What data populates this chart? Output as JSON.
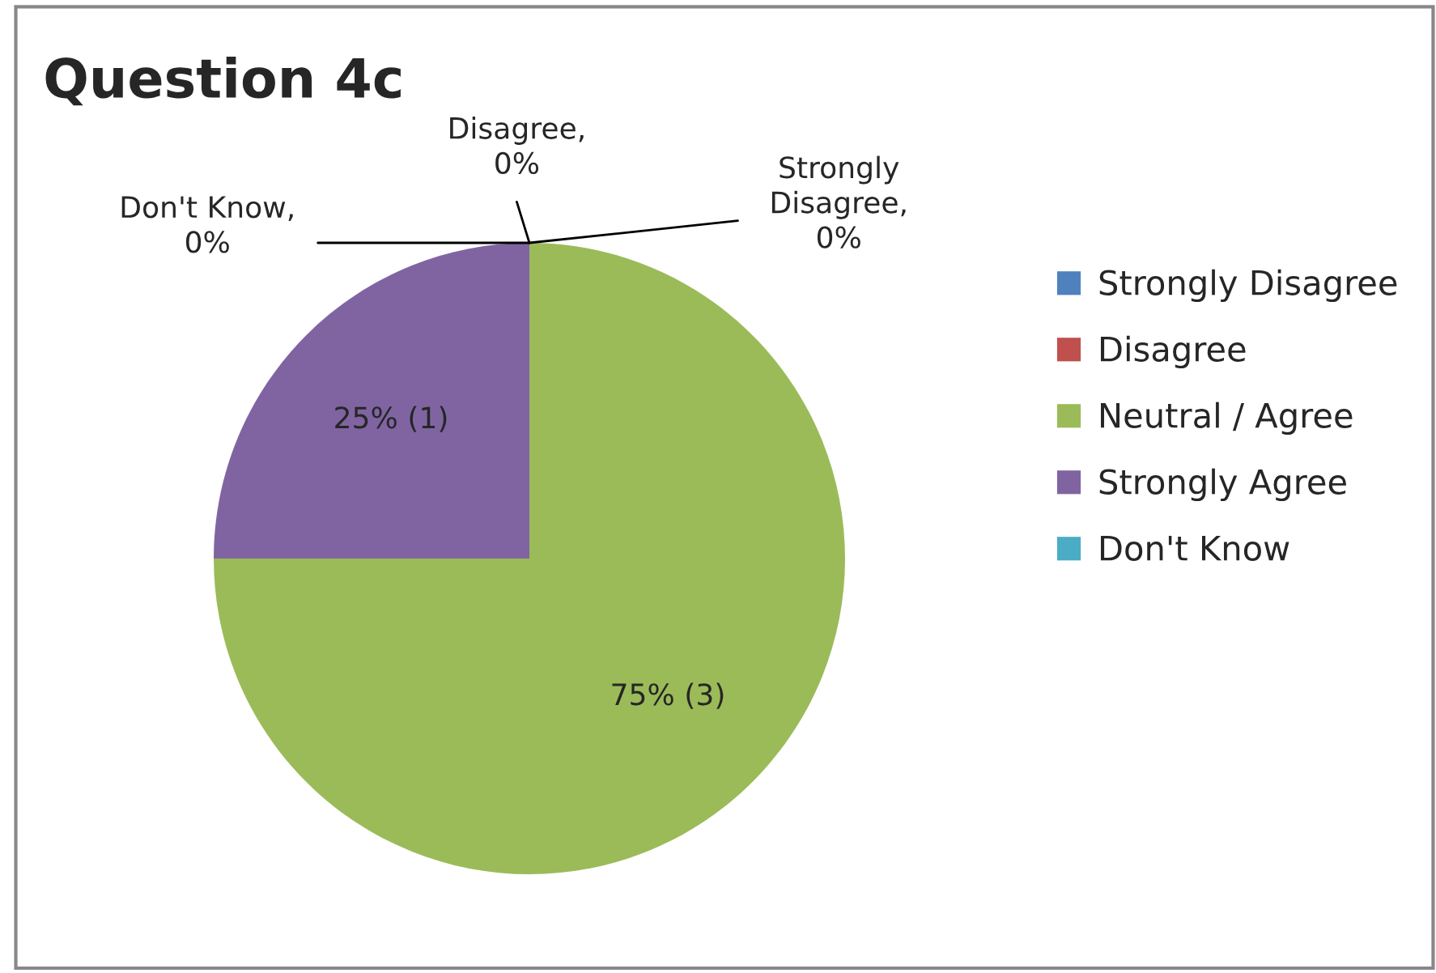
{
  "chart_data": {
    "type": "pie",
    "title": "Question 4c",
    "categories": [
      "Strongly Disagree",
      "Disagree",
      "Neutral / Agree",
      "Strongly Agree",
      "Don't Know"
    ],
    "values": [
      0,
      0,
      75,
      25,
      0
    ],
    "colors": [
      "#4f81bd",
      "#c0504d",
      "#9bbb59",
      "#8064a2",
      "#4bacc6"
    ],
    "value_labels": [
      "Strongly\nDisagree,\n0%",
      "Disagree,\n0%",
      "75% (3)",
      "25% (1)",
      "Don't Know,\n0%"
    ],
    "legend": "right"
  }
}
